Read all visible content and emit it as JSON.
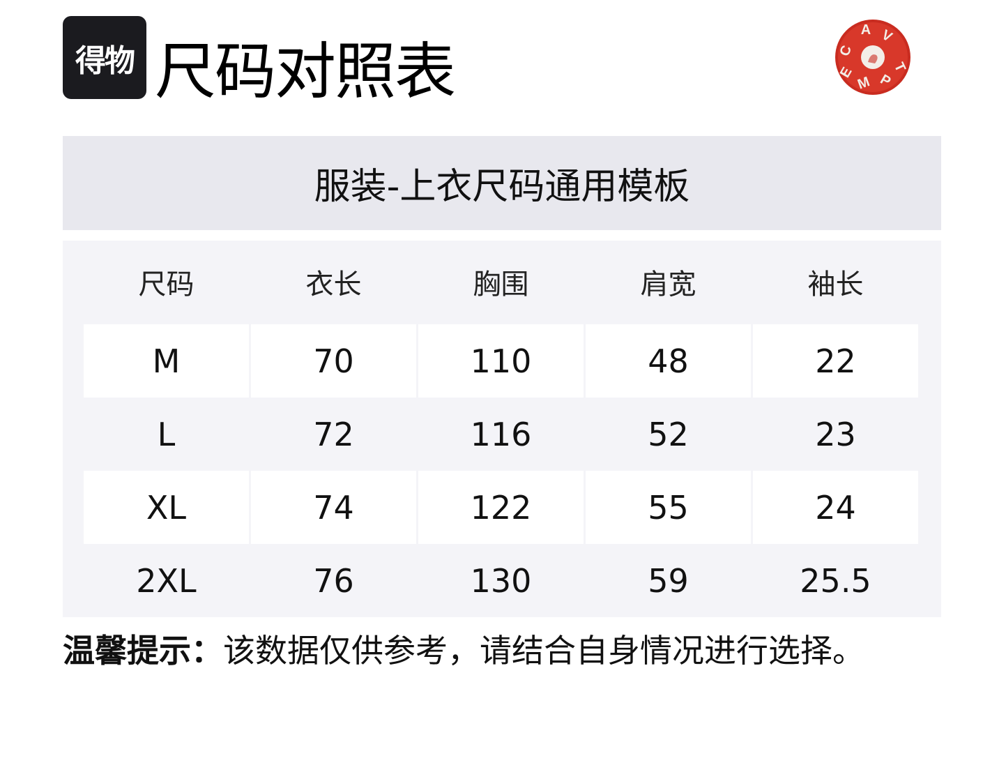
{
  "brand": {
    "logo_text": "得物"
  },
  "title": "尺码对照表",
  "badge": {
    "letters": "CAVEMPT",
    "color": "#d8382a"
  },
  "banner": "服装-上衣尺码通用模板",
  "table": {
    "headers": [
      "尺码",
      "衣长",
      "胸围",
      "肩宽",
      "袖长"
    ],
    "rows": [
      [
        "M",
        "70",
        "110",
        "48",
        "22"
      ],
      [
        "L",
        "72",
        "116",
        "52",
        "23"
      ],
      [
        "XL",
        "74",
        "122",
        "55",
        "24"
      ],
      [
        "2XL",
        "76",
        "130",
        "59",
        "25.5"
      ]
    ]
  },
  "note": {
    "label": "温馨提示：",
    "text": "该数据仅供参考，请结合自身情况进行选择。"
  }
}
